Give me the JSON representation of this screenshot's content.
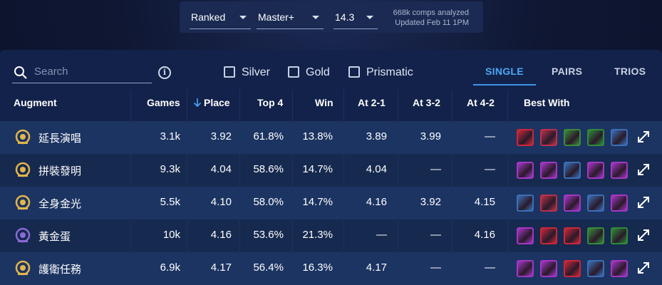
{
  "filters": {
    "mode": "Ranked",
    "rank": "Master+",
    "patch": "14.3",
    "comps_analyzed": "668k comps analyzed",
    "updated": "Updated Feb 11 1PM"
  },
  "toolbar": {
    "search_placeholder": "Search",
    "checkboxes": [
      "Silver",
      "Gold",
      "Prismatic"
    ],
    "tabs": [
      "SINGLE",
      "PAIRS",
      "TRIOS"
    ],
    "active_tab": "SINGLE"
  },
  "columns": [
    "Augment",
    "Games",
    "Place",
    "Top 4",
    "Win",
    "At 2-1",
    "At 3-2",
    "At 4-2",
    "Best With"
  ],
  "rows": [
    {
      "name": "延長演唱",
      "games": "3.1k",
      "place": "3.92",
      "top4": "61.8%",
      "win": "13.8%",
      "at21": "3.89",
      "at32": "3.99",
      "at42": "—",
      "icon_color": "#e3b64a",
      "champs": [
        "#c9283a",
        "#b8324a",
        "#3a8a3a",
        "#2f8a3a",
        "#3b6fb6"
      ]
    },
    {
      "name": "拼裝發明",
      "games": "9.3k",
      "place": "4.04",
      "top4": "58.6%",
      "win": "14.7%",
      "at21": "4.04",
      "at32": "—",
      "at42": "—",
      "icon_color": "#e3b64a",
      "champs": [
        "#a337c4",
        "#a337c4",
        "#3b6fb6",
        "#a337c4",
        "#a337c4"
      ]
    },
    {
      "name": "全身金光",
      "games": "5.5k",
      "place": "4.10",
      "top4": "58.0%",
      "win": "14.7%",
      "at21": "4.16",
      "at32": "3.92",
      "at42": "4.15",
      "icon_color": "#e3b64a",
      "champs": [
        "#3b6fb6",
        "#b8324a",
        "#a337c4",
        "#3b6fb6",
        "#a337c4"
      ]
    },
    {
      "name": "黃金蛋",
      "games": "10k",
      "place": "4.16",
      "top4": "53.6%",
      "win": "21.3%",
      "at21": "—",
      "at32": "—",
      "at42": "4.16",
      "icon_color": "#8a6ad8",
      "champs": [
        "#a337c4",
        "#c9283a",
        "#c9283a",
        "#3a8a3a",
        "#2f8a3a"
      ]
    },
    {
      "name": "護衛任務",
      "games": "6.9k",
      "place": "4.17",
      "top4": "56.4%",
      "win": "16.3%",
      "at21": "4.17",
      "at32": "—",
      "at42": "—",
      "icon_color": "#e3b64a",
      "champs": [
        "#a337c4",
        "#a337c4",
        "#c9283a",
        "#3b6fb6",
        "#a337c4"
      ]
    }
  ]
}
